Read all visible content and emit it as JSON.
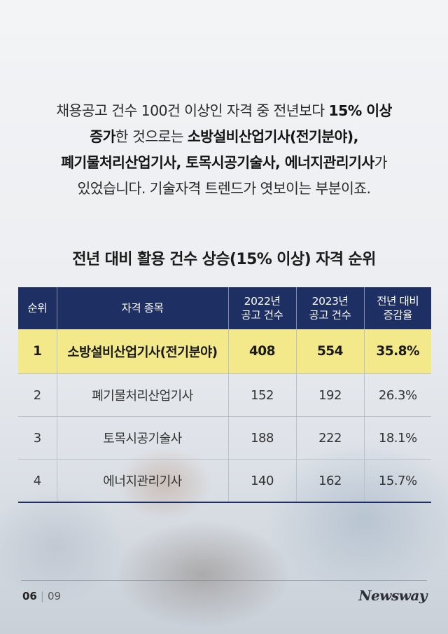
{
  "intro": {
    "line1_a": "채용공고 건수 100건 이상인 자격 중 전년보다 ",
    "line1_b": "15% 이상",
    "line2_a": "증가",
    "line2_b": "한 것으로는 ",
    "line2_c": "소방설비산업기사(전기분야),",
    "line3_a": "폐기물처리산업기사, 토목시공기술사, 에너지관리기사",
    "line3_b": "가",
    "line4": "있었습니다. 기술자격 트렌드가 엿보이는 부분이죠."
  },
  "table_title": "전년 대비 활용 건수 상승(15% 이상) 자격 순위",
  "table": {
    "headers": {
      "rank": "순위",
      "name": "자격 종목",
      "y2022_l1": "2022년",
      "y2022_l2": "공고 건수",
      "y2023_l1": "2023년",
      "y2023_l2": "공고 건수",
      "change_l1": "전년 대비",
      "change_l2": "증감율"
    },
    "rows": [
      {
        "rank": "1",
        "name": "소방설비산업기사(전기분야)",
        "y2022": "408",
        "y2023": "554",
        "change": "35.8%"
      },
      {
        "rank": "2",
        "name": "폐기물처리산업기사",
        "y2022": "152",
        "y2023": "192",
        "change": "26.3%"
      },
      {
        "rank": "3",
        "name": "토목시공기술사",
        "y2022": "188",
        "y2023": "222",
        "change": "18.1%"
      },
      {
        "rank": "4",
        "name": "에너지관리기사",
        "y2022": "140",
        "y2023": "162",
        "change": "15.7%"
      }
    ]
  },
  "footer": {
    "current_page": "06",
    "separator": "|",
    "total_pages": "09",
    "logo": "Newsway"
  },
  "colors": {
    "header_bg": "#1e2f63",
    "highlight_bg": "#f3e98a"
  }
}
